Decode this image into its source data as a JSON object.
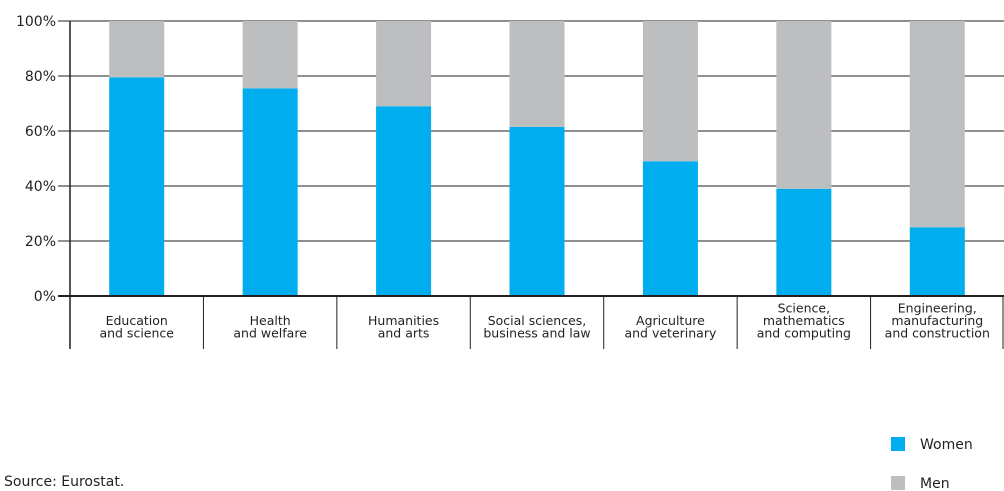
{
  "chart_data": {
    "type": "bar",
    "stacked": true,
    "categories": [
      [
        "Education",
        "and science"
      ],
      [
        "Health",
        "and welfare"
      ],
      [
        "Humanities",
        "and arts"
      ],
      [
        "Social sciences,",
        "business and law"
      ],
      [
        "Agriculture",
        "and veterinary"
      ],
      [
        "Science,",
        "mathematics",
        "and computing"
      ],
      [
        "Engineering,",
        "manufacturing",
        "and construction"
      ]
    ],
    "series": [
      {
        "name": "Women",
        "color": "#00aeef",
        "values": [
          79.5,
          75.5,
          69,
          61.5,
          49,
          39,
          25
        ]
      },
      {
        "name": "Men",
        "color": "#bcbec0",
        "values": [
          20.5,
          24.5,
          31,
          38.5,
          51,
          61,
          75
        ]
      }
    ],
    "yticks": [
      "0%",
      "20%",
      "40%",
      "60%",
      "80%",
      "100%"
    ],
    "ylim": [
      0,
      100
    ],
    "grid": true,
    "legend_position": "bottom-right"
  },
  "source": "Source: Eurostat."
}
